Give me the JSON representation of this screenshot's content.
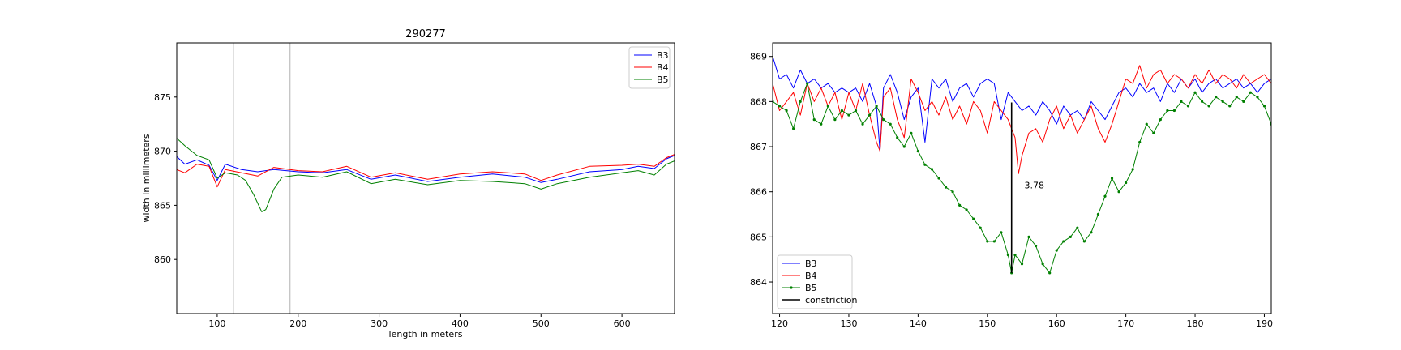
{
  "chart_data": [
    {
      "type": "line",
      "title": "290277",
      "xlabel": "length in meters",
      "ylabel": "width in millimeters",
      "xlim": [
        50,
        665
      ],
      "ylim": [
        855,
        880
      ],
      "xticks": [
        100,
        200,
        300,
        400,
        500,
        600
      ],
      "yticks": [
        860,
        865,
        870,
        875
      ],
      "vlines": [
        120,
        190
      ],
      "legend_position": "top-right",
      "series": [
        {
          "name": "B3",
          "color": "#0000ff",
          "x": [
            50,
            60,
            75,
            90,
            100,
            110,
            130,
            150,
            170,
            200,
            230,
            260,
            290,
            320,
            360,
            400,
            440,
            480,
            500,
            520,
            560,
            600,
            620,
            640,
            655,
            665
          ],
          "y": [
            869.5,
            868.8,
            869.2,
            868.7,
            867.3,
            868.8,
            868.3,
            868.1,
            868.3,
            868.1,
            868.0,
            868.3,
            867.4,
            867.8,
            867.2,
            867.6,
            867.9,
            867.6,
            867.1,
            867.4,
            868.1,
            868.3,
            868.6,
            868.4,
            869.3,
            869.6
          ]
        },
        {
          "name": "B4",
          "color": "#ff0000",
          "x": [
            50,
            60,
            75,
            90,
            100,
            110,
            130,
            150,
            170,
            200,
            230,
            260,
            290,
            320,
            360,
            400,
            440,
            480,
            500,
            520,
            560,
            600,
            620,
            640,
            655,
            665
          ],
          "y": [
            868.3,
            868.0,
            868.8,
            868.6,
            866.7,
            868.3,
            868.0,
            867.7,
            868.5,
            868.2,
            868.1,
            868.6,
            867.6,
            868.0,
            867.4,
            867.9,
            868.1,
            867.9,
            867.3,
            867.8,
            868.6,
            868.7,
            868.8,
            868.6,
            869.4,
            869.7
          ]
        },
        {
          "name": "B5",
          "color": "#008000",
          "x": [
            50,
            60,
            75,
            90,
            100,
            110,
            125,
            135,
            145,
            155,
            160,
            170,
            180,
            200,
            230,
            260,
            290,
            320,
            360,
            400,
            440,
            480,
            500,
            520,
            560,
            600,
            620,
            640,
            655,
            665
          ],
          "y": [
            871.2,
            870.5,
            869.6,
            869.2,
            867.5,
            868.0,
            867.8,
            867.3,
            866.0,
            864.4,
            864.6,
            866.5,
            867.6,
            867.8,
            867.6,
            868.1,
            867.0,
            867.4,
            866.9,
            867.3,
            867.2,
            867.0,
            866.5,
            867.0,
            867.6,
            868.0,
            868.2,
            867.8,
            868.8,
            869.1
          ]
        }
      ]
    },
    {
      "type": "line",
      "title": "",
      "xlabel": "",
      "ylabel": "",
      "xlim": [
        119,
        191
      ],
      "ylim": [
        863.3,
        869.3
      ],
      "xticks": [
        120,
        130,
        140,
        150,
        160,
        170,
        180,
        190
      ],
      "yticks": [
        864,
        865,
        866,
        867,
        868,
        869
      ],
      "legend_position": "lower-left",
      "annotation": {
        "text": "3.78",
        "x": 155,
        "y": 866.15
      },
      "series": [
        {
          "name": "B3",
          "color": "#0000ff",
          "marker": "none",
          "x": [
            119,
            120,
            121,
            122,
            123,
            124,
            125,
            126,
            127,
            128,
            129,
            130,
            131,
            132,
            133,
            134,
            134.5,
            135,
            136,
            137,
            138,
            139,
            140,
            141,
            142,
            143,
            144,
            145,
            146,
            147,
            148,
            149,
            150,
            151,
            152,
            153,
            154,
            155,
            156,
            157,
            158,
            159,
            160,
            161,
            162,
            163,
            164,
            165,
            166,
            167,
            168,
            169,
            170,
            171,
            172,
            173,
            174,
            175,
            176,
            177,
            178,
            179,
            180,
            181,
            182,
            183,
            184,
            185,
            186,
            187,
            188,
            189,
            190,
            191
          ],
          "y": [
            869.0,
            868.5,
            868.6,
            868.3,
            868.7,
            868.4,
            868.5,
            868.3,
            868.4,
            868.2,
            868.3,
            868.2,
            868.3,
            868.0,
            868.4,
            867.9,
            866.9,
            868.3,
            868.6,
            868.2,
            867.6,
            868.1,
            868.3,
            867.1,
            868.5,
            868.3,
            868.5,
            868.0,
            868.3,
            868.4,
            868.1,
            868.4,
            868.5,
            868.4,
            867.6,
            868.2,
            868.0,
            867.8,
            867.9,
            867.7,
            868.0,
            867.8,
            867.5,
            867.9,
            867.7,
            867.8,
            867.6,
            868.0,
            867.8,
            867.6,
            867.9,
            868.2,
            868.3,
            868.1,
            868.4,
            868.2,
            868.3,
            868.0,
            868.4,
            868.2,
            868.5,
            868.3,
            868.5,
            868.2,
            868.4,
            868.5,
            868.3,
            868.4,
            868.5,
            868.3,
            868.4,
            868.2,
            868.4,
            868.5
          ]
        },
        {
          "name": "B4",
          "color": "#ff0000",
          "marker": "none",
          "x": [
            119,
            120,
            121,
            122,
            123,
            124,
            125,
            126,
            127,
            128,
            129,
            130,
            131,
            132,
            133,
            134,
            134.5,
            135,
            136,
            137,
            138,
            139,
            140,
            141,
            142,
            143,
            144,
            145,
            146,
            147,
            148,
            149,
            150,
            151,
            152,
            153,
            154,
            154.5,
            155,
            156,
            157,
            158,
            159,
            160,
            161,
            162,
            163,
            164,
            165,
            166,
            167,
            168,
            169,
            170,
            171,
            172,
            173,
            174,
            175,
            176,
            177,
            178,
            179,
            180,
            181,
            182,
            183,
            184,
            185,
            186,
            187,
            188,
            189,
            190,
            191
          ],
          "y": [
            868.4,
            867.8,
            868.0,
            868.2,
            867.7,
            868.4,
            868.0,
            868.3,
            867.9,
            868.2,
            867.6,
            868.2,
            867.8,
            868.4,
            867.7,
            867.1,
            866.9,
            868.1,
            868.3,
            867.6,
            867.2,
            868.5,
            868.2,
            867.8,
            868.0,
            867.7,
            868.1,
            867.6,
            867.9,
            867.5,
            868.0,
            867.8,
            867.3,
            868.0,
            867.8,
            867.6,
            867.2,
            866.4,
            866.8,
            867.3,
            867.4,
            867.1,
            867.6,
            867.9,
            867.4,
            867.7,
            867.3,
            867.6,
            867.9,
            867.4,
            867.1,
            867.5,
            868.0,
            868.5,
            868.4,
            868.8,
            868.3,
            868.6,
            868.7,
            868.4,
            868.6,
            868.5,
            868.3,
            868.6,
            868.4,
            868.7,
            868.4,
            868.6,
            868.5,
            868.3,
            868.6,
            868.4,
            868.5,
            868.6,
            868.4
          ]
        },
        {
          "name": "B5",
          "color": "#008000",
          "marker": "dot",
          "x": [
            119,
            120,
            121,
            122,
            123,
            124,
            125,
            126,
            127,
            128,
            129,
            130,
            131,
            132,
            133,
            134,
            135,
            136,
            137,
            138,
            139,
            140,
            141,
            142,
            143,
            144,
            145,
            146,
            147,
            148,
            149,
            150,
            151,
            152,
            153,
            153.5,
            154,
            155,
            156,
            157,
            158,
            159,
            160,
            161,
            162,
            163,
            164,
            165,
            166,
            167,
            168,
            169,
            170,
            171,
            172,
            173,
            174,
            175,
            176,
            177,
            178,
            179,
            180,
            181,
            182,
            183,
            184,
            185,
            186,
            187,
            188,
            189,
            190,
            191
          ],
          "y": [
            868.0,
            867.9,
            867.8,
            867.4,
            868.0,
            868.4,
            867.6,
            867.5,
            867.9,
            867.6,
            867.8,
            867.7,
            867.8,
            867.5,
            867.7,
            867.9,
            867.6,
            867.5,
            867.2,
            867.0,
            867.3,
            866.9,
            866.6,
            866.5,
            866.3,
            866.1,
            866.0,
            865.7,
            865.6,
            865.4,
            865.2,
            864.9,
            864.9,
            865.1,
            864.6,
            864.2,
            864.6,
            864.4,
            865.0,
            864.8,
            864.4,
            864.2,
            864.7,
            864.9,
            865.0,
            865.2,
            864.9,
            865.1,
            865.5,
            865.9,
            866.3,
            866.0,
            866.2,
            866.5,
            867.1,
            867.5,
            867.3,
            867.6,
            867.8,
            867.8,
            868.0,
            867.9,
            868.2,
            868.0,
            867.9,
            868.1,
            868.0,
            867.9,
            868.1,
            868.0,
            868.2,
            868.1,
            867.9,
            867.5
          ]
        },
        {
          "name": "constriction",
          "color": "#000000",
          "marker": "none",
          "x": [
            153.5,
            153.5
          ],
          "y": [
            864.2,
            867.98
          ]
        }
      ]
    }
  ]
}
